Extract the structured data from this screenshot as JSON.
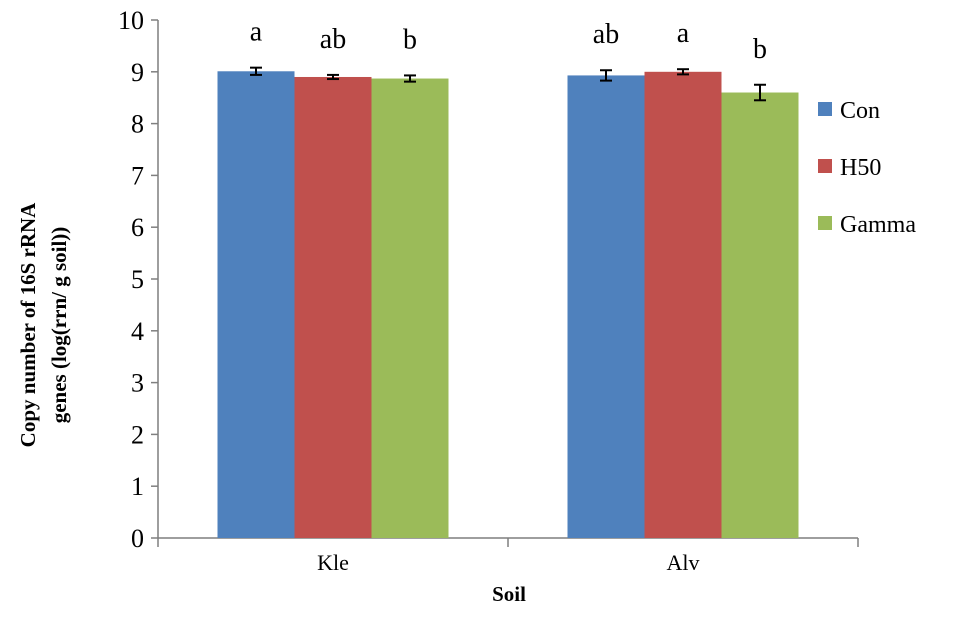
{
  "chart_data": {
    "type": "bar",
    "xlabel": "Soil",
    "ylabel": [
      "Copy number of 16S rRNA",
      "genes (log(rrn/ g soil))"
    ],
    "ylim": [
      0,
      10
    ],
    "yticks": [
      0,
      1,
      2,
      3,
      4,
      5,
      6,
      7,
      8,
      9,
      10
    ],
    "categories": [
      "Kle",
      "Alv"
    ],
    "legend_position": "right",
    "grid": false,
    "series": [
      {
        "name": "Con",
        "color": "#4f81bd",
        "values": [
          9.01,
          8.93
        ],
        "errors": [
          0.07,
          0.1
        ],
        "significance": [
          "a",
          "ab"
        ]
      },
      {
        "name": "H50",
        "color": "#c0504d",
        "values": [
          8.9,
          9.0
        ],
        "errors": [
          0.04,
          0.05
        ],
        "significance": [
          "ab",
          "a"
        ]
      },
      {
        "name": "Gamma",
        "color": "#9bbb59",
        "values": [
          8.87,
          8.6
        ],
        "errors": [
          0.06,
          0.15
        ],
        "significance": [
          "b",
          "b"
        ]
      }
    ]
  }
}
